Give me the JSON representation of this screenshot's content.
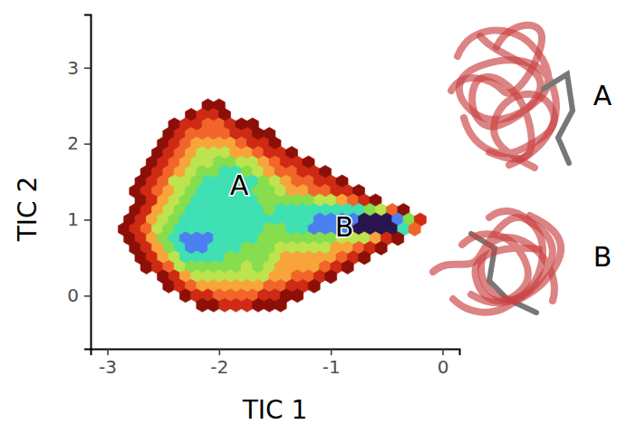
{
  "chart_data": {
    "type": "hexbin",
    "x_label": "TIC 1",
    "y_label": "TIC 2",
    "xlim": [
      -3.15,
      0.15
    ],
    "ylim": [
      -0.7,
      3.7
    ],
    "xticks": [
      -3,
      -2,
      -1,
      0
    ],
    "yticks": [
      0,
      1,
      2,
      3
    ],
    "colors": [
      "#8c1007",
      "#cf2a14",
      "#f2652a",
      "#f7a53b",
      "#bde44e",
      "#86dd4d",
      "#3fe0b3",
      "#4c7ff0",
      "#29154f"
    ],
    "annotations": [
      {
        "text": "A",
        "x": -1.82,
        "y": 1.45
      },
      {
        "text": "B",
        "x": -0.88,
        "y": 0.9
      }
    ],
    "structure_labels": [
      "A",
      "B"
    ],
    "rows": [
      {
        "y": 2.5,
        "x": [
          -2.1,
          -2.0
        ],
        "values": [
          1,
          1
        ]
      },
      {
        "y": 2.375,
        "x": [
          -2.25,
          -2.15,
          -2.05,
          -1.95
        ],
        "values": [
          1,
          2,
          2,
          1
        ]
      },
      {
        "y": 2.25,
        "x": [
          -2.4,
          -2.3,
          -2.2,
          -2.1,
          -2.0,
          -1.9,
          -1.8,
          -1.7
        ],
        "values": [
          1,
          2,
          2,
          3,
          3,
          2,
          1,
          1
        ]
      },
      {
        "y": 2.125,
        "x": [
          -2.45,
          -2.35,
          -2.25,
          -2.15,
          -2.05,
          -1.95,
          -1.85,
          -1.75,
          -1.65,
          -1.55
        ],
        "values": [
          1,
          2,
          3,
          3,
          3,
          3,
          2,
          2,
          1,
          1
        ]
      },
      {
        "y": 2.0,
        "x": [
          -2.5,
          -2.4,
          -2.3,
          -2.2,
          -2.1,
          -2.0,
          -1.9,
          -1.8,
          -1.7,
          -1.6,
          -1.5
        ],
        "values": [
          1,
          2,
          3,
          4,
          4,
          4,
          4,
          3,
          2,
          2,
          1
        ]
      },
      {
        "y": 1.875,
        "x": [
          -2.55,
          -2.45,
          -2.35,
          -2.25,
          -2.15,
          -2.05,
          -1.95,
          -1.85,
          -1.75,
          -1.65,
          -1.55,
          -1.45,
          -1.35
        ],
        "values": [
          1,
          2,
          3,
          4,
          5,
          5,
          5,
          4,
          4,
          3,
          2,
          2,
          1
        ]
      },
      {
        "y": 1.75,
        "x": [
          -2.6,
          -2.5,
          -2.4,
          -2.3,
          -2.2,
          -2.1,
          -2.0,
          -1.9,
          -1.8,
          -1.7,
          -1.6,
          -1.5,
          -1.4,
          -1.3,
          -1.2
        ],
        "values": [
          1,
          2,
          3,
          4,
          5,
          5,
          6,
          6,
          5,
          5,
          4,
          3,
          2,
          2,
          1
        ]
      },
      {
        "y": 1.625,
        "x": [
          -2.65,
          -2.55,
          -2.45,
          -2.35,
          -2.25,
          -2.15,
          -2.05,
          -1.95,
          -1.85,
          -1.75,
          -1.65,
          -1.55,
          -1.45,
          -1.35,
          -1.25,
          -1.15,
          -1.05
        ],
        "values": [
          1,
          2,
          3,
          4,
          5,
          6,
          6,
          7,
          7,
          6,
          5,
          4,
          3,
          3,
          2,
          2,
          1
        ]
      },
      {
        "y": 1.5,
        "x": [
          -2.7,
          -2.6,
          -2.5,
          -2.4,
          -2.3,
          -2.2,
          -2.1,
          -2.0,
          -1.9,
          -1.8,
          -1.7,
          -1.6,
          -1.5,
          -1.4,
          -1.3,
          -1.2,
          -1.1,
          -1.0,
          -0.9
        ],
        "values": [
          1,
          2,
          3,
          5,
          5,
          6,
          7,
          7,
          7,
          7,
          7,
          6,
          5,
          4,
          3,
          3,
          2,
          2,
          1
        ]
      },
      {
        "y": 1.375,
        "x": [
          -2.75,
          -2.65,
          -2.55,
          -2.45,
          -2.35,
          -2.25,
          -2.15,
          -2.05,
          -1.95,
          -1.85,
          -1.75,
          -1.65,
          -1.55,
          -1.45,
          -1.35,
          -1.25,
          -1.15,
          -1.05,
          -0.95,
          -0.85,
          -0.75
        ],
        "values": [
          1,
          2,
          3,
          4,
          5,
          6,
          7,
          7,
          7,
          7,
          7,
          6,
          6,
          5,
          4,
          4,
          3,
          3,
          2,
          2,
          1
        ]
      },
      {
        "y": 1.25,
        "x": [
          -2.7,
          -2.6,
          -2.5,
          -2.4,
          -2.3,
          -2.2,
          -2.1,
          -2.0,
          -1.9,
          -1.8,
          -1.7,
          -1.6,
          -1.5,
          -1.4,
          -1.3,
          -1.2,
          -1.1,
          -1.0,
          -0.9,
          -0.8,
          -0.7,
          -0.6
        ],
        "values": [
          1,
          2,
          4,
          5,
          6,
          7,
          7,
          7,
          7,
          7,
          7,
          6,
          6,
          6,
          6,
          6,
          5,
          5,
          4,
          3,
          2,
          1
        ]
      },
      {
        "y": 1.125,
        "x": [
          -2.75,
          -2.65,
          -2.55,
          -2.45,
          -2.35,
          -2.25,
          -2.15,
          -2.05,
          -1.95,
          -1.85,
          -1.75,
          -1.65,
          -1.55,
          -1.45,
          -1.35,
          -1.25,
          -1.15,
          -1.05,
          -0.95,
          -0.85,
          -0.75,
          -0.65,
          -0.55,
          -0.45,
          -0.35
        ],
        "values": [
          1,
          2,
          4,
          5,
          6,
          7,
          7,
          7,
          7,
          7,
          7,
          7,
          6,
          7,
          7,
          7,
          7,
          7,
          7,
          7,
          7,
          6,
          5,
          3,
          1
        ]
      },
      {
        "y": 1.0,
        "x": [
          -2.8,
          -2.7,
          -2.6,
          -2.5,
          -2.4,
          -2.3,
          -2.2,
          -2.1,
          -2.0,
          -1.9,
          -1.8,
          -1.7,
          -1.6,
          -1.5,
          -1.4,
          -1.3,
          -1.2,
          -1.1,
          -1.0,
          -0.9,
          -0.8,
          -0.7,
          -0.6,
          -0.5,
          -0.4,
          -0.3,
          -0.2
        ],
        "values": [
          1,
          2,
          4,
          5,
          6,
          7,
          7,
          7,
          7,
          7,
          7,
          7,
          7,
          7,
          7,
          7,
          7,
          8,
          8,
          8,
          8,
          9,
          9,
          9,
          8,
          6,
          2
        ]
      },
      {
        "y": 0.875,
        "x": [
          -2.85,
          -2.75,
          -2.65,
          -2.55,
          -2.45,
          -2.35,
          -2.25,
          -2.15,
          -2.05,
          -1.95,
          -1.85,
          -1.75,
          -1.65,
          -1.55,
          -1.45,
          -1.35,
          -1.25,
          -1.15,
          -1.05,
          -0.95,
          -0.85,
          -0.75,
          -0.65,
          -0.55,
          -0.45,
          -0.35,
          -0.25
        ],
        "values": [
          1,
          2,
          3,
          5,
          6,
          7,
          7,
          7,
          7,
          7,
          7,
          7,
          7,
          6,
          6,
          7,
          7,
          8,
          8,
          8,
          8,
          9,
          9,
          9,
          9,
          7,
          3
        ]
      },
      {
        "y": 0.75,
        "x": [
          -2.8,
          -2.7,
          -2.6,
          -2.5,
          -2.4,
          -2.3,
          -2.2,
          -2.1,
          -2.0,
          -1.9,
          -1.8,
          -1.7,
          -1.6,
          -1.5,
          -1.4,
          -1.3,
          -1.2,
          -1.1,
          -1.0,
          -0.9,
          -0.8,
          -0.7,
          -0.6,
          -0.5,
          -0.4
        ],
        "values": [
          1,
          2,
          4,
          6,
          7,
          8,
          8,
          8,
          7,
          7,
          7,
          7,
          6,
          6,
          6,
          6,
          6,
          6,
          6,
          5,
          5,
          5,
          4,
          2,
          1
        ]
      },
      {
        "y": 0.625,
        "x": [
          -2.75,
          -2.65,
          -2.55,
          -2.45,
          -2.35,
          -2.25,
          -2.15,
          -2.05,
          -1.95,
          -1.85,
          -1.75,
          -1.65,
          -1.55,
          -1.45,
          -1.35,
          -1.25,
          -1.15,
          -1.05,
          -0.95,
          -0.85,
          -0.75,
          -0.65,
          -0.55
        ],
        "values": [
          1,
          2,
          4,
          6,
          7,
          8,
          8,
          7,
          7,
          7,
          6,
          6,
          6,
          5,
          5,
          5,
          5,
          5,
          4,
          4,
          3,
          2,
          1
        ]
      },
      {
        "y": 0.5,
        "x": [
          -2.7,
          -2.6,
          -2.5,
          -2.4,
          -2.3,
          -2.2,
          -2.1,
          -2.0,
          -1.9,
          -1.8,
          -1.7,
          -1.6,
          -1.5,
          -1.4,
          -1.3,
          -1.2,
          -1.1,
          -1.0,
          -0.9,
          -0.8,
          -0.7
        ],
        "values": [
          1,
          2,
          4,
          5,
          7,
          7,
          7,
          7,
          6,
          6,
          6,
          6,
          5,
          4,
          4,
          4,
          4,
          4,
          3,
          2,
          1
        ]
      },
      {
        "y": 0.375,
        "x": [
          -2.65,
          -2.55,
          -2.45,
          -2.35,
          -2.25,
          -2.15,
          -2.05,
          -1.95,
          -1.85,
          -1.75,
          -1.65,
          -1.55,
          -1.45,
          -1.35,
          -1.25,
          -1.15,
          -1.05,
          -0.95,
          -0.85
        ],
        "values": [
          1,
          2,
          3,
          5,
          6,
          6,
          6,
          6,
          6,
          5,
          6,
          5,
          4,
          4,
          4,
          4,
          3,
          2,
          1
        ]
      },
      {
        "y": 0.25,
        "x": [
          -2.5,
          -2.4,
          -2.3,
          -2.2,
          -2.1,
          -2.0,
          -1.9,
          -1.8,
          -1.7,
          -1.6,
          -1.5,
          -1.4,
          -1.3,
          -1.2,
          -1.1,
          -1.0
        ],
        "values": [
          1,
          2,
          4,
          5,
          5,
          5,
          5,
          5,
          5,
          5,
          4,
          4,
          3,
          3,
          2,
          1
        ]
      },
      {
        "y": 0.125,
        "x": [
          -2.45,
          -2.35,
          -2.25,
          -2.15,
          -2.05,
          -1.95,
          -1.85,
          -1.75,
          -1.65,
          -1.55,
          -1.45,
          -1.35,
          -1.25,
          -1.15
        ],
        "values": [
          1,
          2,
          3,
          4,
          4,
          4,
          4,
          4,
          4,
          3,
          3,
          2,
          2,
          1
        ]
      },
      {
        "y": 0.0,
        "x": [
          -2.3,
          -2.2,
          -2.1,
          -2.0,
          -1.9,
          -1.8,
          -1.7,
          -1.6,
          -1.5,
          -1.4,
          -1.3
        ],
        "values": [
          1,
          2,
          2,
          3,
          3,
          3,
          3,
          2,
          2,
          1,
          1
        ]
      },
      {
        "y": -0.125,
        "x": [
          -2.15,
          -2.05,
          -1.95,
          -1.85,
          -1.75,
          -1.65,
          -1.55,
          -1.45
        ],
        "values": [
          1,
          1,
          2,
          2,
          2,
          1,
          1,
          1
        ]
      }
    ]
  }
}
